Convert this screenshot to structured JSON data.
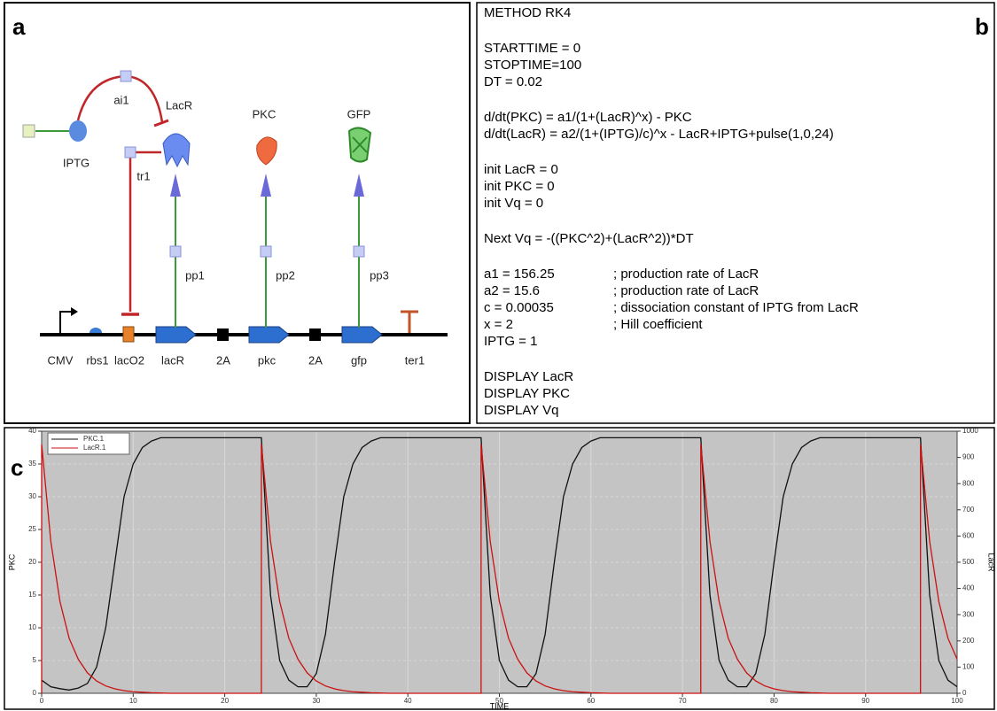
{
  "panel_labels": [
    "a",
    "b",
    "c"
  ],
  "diagram": {
    "labels": [
      "CMV",
      "rbs1",
      "lacO2",
      "lacR",
      "2A",
      "pkc",
      "2A",
      "gfp",
      "ter1",
      "IPTG",
      "ai1",
      "LacR",
      "tr1",
      "PKC",
      "GFP",
      "pp1",
      "pp2",
      "pp3"
    ]
  },
  "code": {
    "blocks": [
      [
        "METHOD RK4"
      ],
      [
        "STARTTIME = 0",
        "STOPTIME=100",
        "DT = 0.02"
      ],
      [
        "d/dt(PKC) = a1/(1+(LacR)^x) - PKC",
        "d/dt(LacR) = a2/(1+(IPTG)/c)^x - LacR+IPTG+pulse(1,0,24)"
      ],
      [
        "init LacR = 0",
        "init PKC = 0",
        "init Vq = 0"
      ],
      [
        "Next Vq = -((PKC^2)+(LacR^2))*DT"
      ],
      [
        {
          "code": "a1 = 156.25",
          "comment": "; production rate of LacR"
        },
        {
          "code": "a2 = 15.6",
          "comment": "; production rate of LacR"
        },
        {
          "code": "c = 0.00035",
          "comment": "; dissociation constant of IPTG from LacR"
        },
        {
          "code": "x = 2",
          "comment": "; Hill coefficient"
        },
        "IPTG = 1"
      ],
      [
        "DISPLAY LacR",
        "DISPLAY PKC",
        "DISPLAY Vq"
      ]
    ]
  },
  "chart_data": {
    "type": "line",
    "x_label": "TIME",
    "y_label": "PKC",
    "y2_label": "LacR",
    "xlim": [
      0,
      100
    ],
    "xticks": [
      0,
      10,
      20,
      30,
      40,
      50,
      60,
      70,
      80,
      90,
      100
    ],
    "ylim": [
      0,
      40
    ],
    "yticks": [
      0,
      5,
      10,
      15,
      20,
      25,
      30,
      35,
      40
    ],
    "y2lim": [
      0,
      1000
    ],
    "y2ticks": [
      0,
      100,
      200,
      300,
      400,
      500,
      600,
      700,
      800,
      900,
      1000
    ],
    "grid": true,
    "x": [
      0,
      0,
      1,
      2,
      3,
      4,
      5,
      6,
      7,
      8,
      9,
      10,
      11,
      12,
      13,
      14,
      15,
      16,
      17,
      18,
      19,
      20,
      21,
      22,
      23,
      24,
      24,
      25,
      26,
      27,
      28,
      29,
      30,
      31,
      32,
      33,
      34,
      35,
      36,
      37,
      38,
      39,
      40,
      41,
      42,
      43,
      44,
      45,
      46,
      47,
      48,
      48,
      49,
      50,
      51,
      52,
      53,
      54,
      55,
      56,
      57,
      58,
      59,
      60,
      61,
      62,
      63,
      64,
      65,
      66,
      67,
      68,
      69,
      70,
      71,
      72,
      72,
      73,
      74,
      75,
      76,
      77,
      78,
      79,
      80,
      81,
      82,
      83,
      84,
      85,
      86,
      87,
      88,
      89,
      90,
      91,
      92,
      93,
      94,
      95,
      96,
      96,
      97,
      98,
      99,
      100
    ],
    "series": [
      {
        "name": "PKC.1",
        "color": "#111111",
        "values": [
          2,
          2,
          1,
          0.7,
          0.5,
          0.8,
          1.5,
          4,
          10,
          20,
          30,
          35,
          37.5,
          38.5,
          39,
          39,
          39,
          39,
          39,
          39,
          39,
          39,
          39,
          39,
          39,
          39,
          39,
          15,
          5,
          2,
          1,
          1,
          3,
          9,
          20,
          30,
          35,
          37.5,
          38.5,
          39,
          39,
          39,
          39,
          39,
          39,
          39,
          39,
          39,
          39,
          39,
          39,
          39,
          15,
          5,
          2,
          1,
          1,
          3,
          9,
          20,
          30,
          35,
          37.5,
          38.5,
          39,
          39,
          39,
          39,
          39,
          39,
          39,
          39,
          39,
          39,
          39,
          39,
          39,
          15,
          5,
          2,
          1,
          1,
          3,
          9,
          20,
          30,
          35,
          37.5,
          38.5,
          39,
          39,
          39,
          39,
          39,
          39,
          39,
          39,
          39,
          39,
          39,
          39,
          39,
          15,
          5,
          2,
          1
        ]
      },
      {
        "name": "LacR.1",
        "color": "#cc1111",
        "axis": "y2",
        "values": [
          0,
          950,
          580,
          350,
          210,
          130,
          78,
          47,
          28,
          17,
          10,
          6,
          4,
          2,
          1,
          0,
          0,
          0,
          0,
          0,
          0,
          0,
          0,
          0,
          0,
          0,
          950,
          580,
          350,
          210,
          130,
          78,
          47,
          28,
          17,
          10,
          6,
          4,
          2,
          1,
          0,
          0,
          0,
          0,
          0,
          0,
          0,
          0,
          0,
          0,
          0,
          950,
          580,
          350,
          210,
          130,
          78,
          47,
          28,
          17,
          10,
          6,
          4,
          2,
          1,
          0,
          0,
          0,
          0,
          0,
          0,
          0,
          0,
          0,
          0,
          0,
          950,
          580,
          350,
          210,
          130,
          78,
          47,
          28,
          17,
          10,
          6,
          4,
          2,
          1,
          0,
          0,
          0,
          0,
          0,
          0,
          0,
          0,
          0,
          0,
          0,
          950,
          580,
          350,
          210,
          130
        ]
      }
    ]
  }
}
